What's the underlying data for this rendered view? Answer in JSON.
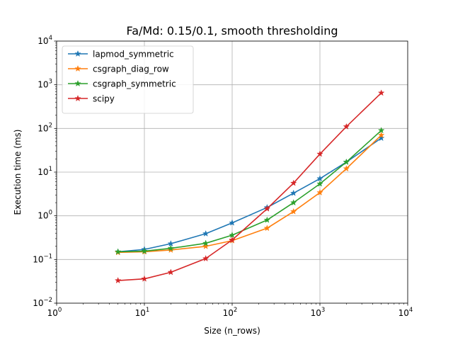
{
  "chart_data": {
    "type": "line",
    "title": "Fa/Md: 0.15/0.1, smooth thresholding",
    "xlabel": "Size (n_rows)",
    "ylabel": "Execution time (ms)",
    "xscale": "log",
    "yscale": "log",
    "xlim": [
      1,
      10000
    ],
    "ylim": [
      0.01,
      10000
    ],
    "grid": true,
    "legend_position": "top-left",
    "x_tick_labels": [
      {
        "base": "10",
        "exp": "0"
      },
      {
        "base": "10",
        "exp": "1"
      },
      {
        "base": "10",
        "exp": "2"
      },
      {
        "base": "10",
        "exp": "3"
      },
      {
        "base": "10",
        "exp": "4"
      }
    ],
    "y_tick_labels": [
      {
        "base": "10",
        "exp": "−2"
      },
      {
        "base": "10",
        "exp": "−1"
      },
      {
        "base": "10",
        "exp": "0"
      },
      {
        "base": "10",
        "exp": "1"
      },
      {
        "base": "10",
        "exp": "2"
      },
      {
        "base": "10",
        "exp": "3"
      },
      {
        "base": "10",
        "exp": "4"
      }
    ],
    "x": [
      5,
      10,
      20,
      50,
      100,
      250,
      500,
      1000,
      2000,
      5000
    ],
    "series": [
      {
        "name": "lapmod_symmetric",
        "color": "#1f77b4",
        "marker": "star",
        "values": [
          0.15,
          0.17,
          0.23,
          0.39,
          0.69,
          1.55,
          3.3,
          7.1,
          17,
          60
        ]
      },
      {
        "name": "csgraph_diag_row",
        "color": "#ff7f0e",
        "marker": "star",
        "values": [
          0.145,
          0.15,
          0.165,
          0.2,
          0.27,
          0.52,
          1.25,
          3.4,
          12,
          70
        ]
      },
      {
        "name": "csgraph_symmetric",
        "color": "#2ca02c",
        "marker": "star",
        "values": [
          0.15,
          0.155,
          0.18,
          0.235,
          0.36,
          0.8,
          2.0,
          5.4,
          17,
          90
        ]
      },
      {
        "name": "scipy",
        "color": "#d62728",
        "marker": "star",
        "values": [
          0.033,
          0.036,
          0.051,
          0.105,
          0.28,
          1.45,
          5.6,
          26,
          110,
          650
        ]
      }
    ]
  }
}
